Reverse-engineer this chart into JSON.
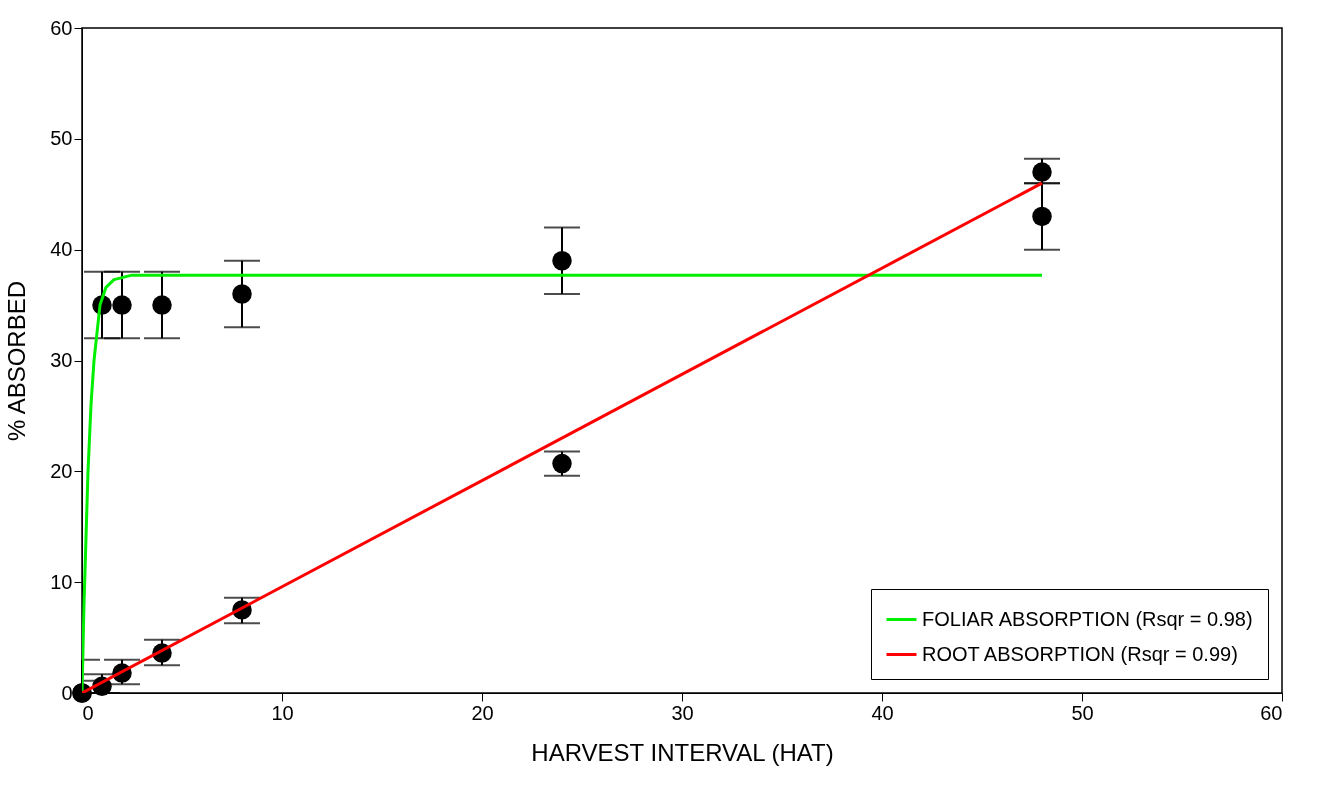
{
  "chart_data": {
    "type": "scatter",
    "xlabel": "HARVEST INTERVAL (HAT)",
    "ylabel": "% ABSORBED",
    "xlim": [
      0,
      60
    ],
    "ylim": [
      0,
      60
    ],
    "xticks": [
      0,
      10,
      20,
      30,
      40,
      50,
      60
    ],
    "yticks": [
      0,
      10,
      20,
      30,
      40,
      50,
      60
    ],
    "grid": false,
    "legend": "bottom right",
    "marker": "circle",
    "series": [
      {
        "color": "#000000",
        "x": [
          0,
          1,
          2,
          4,
          8,
          24,
          48
        ],
        "values": [
          0,
          35,
          35,
          35,
          36,
          39,
          43
        ],
        "errors": [
          [
            0,
            3
          ],
          [
            32,
            38
          ],
          [
            32,
            38
          ],
          [
            32,
            38
          ],
          [
            33,
            39
          ],
          [
            36,
            42
          ],
          [
            40,
            46
          ]
        ]
      },
      {
        "color": "#000000",
        "x": [
          0,
          1,
          2,
          4,
          8,
          24,
          48
        ],
        "values": [
          0,
          0.6,
          1.8,
          3.6,
          7.5,
          20.7,
          47
        ],
        "errors": [
          [
            0,
            1.1
          ],
          [
            0,
            1.7
          ],
          [
            0.8,
            3
          ],
          [
            2.5,
            4.8
          ],
          [
            6.3,
            8.6
          ],
          [
            19.6,
            21.8
          ],
          [
            46,
            48.2
          ]
        ]
      },
      {
        "type": "line",
        "name": "FOLIAR ABSORPTION (Rsqr = 0.98)",
        "color": "#00ee00",
        "line_style": "solid",
        "marker": "none",
        "x": [
          0,
          0.1,
          0.2,
          0.3,
          0.45,
          0.6,
          0.9,
          1.2,
          1.6,
          2.5,
          48
        ],
        "values": [
          0,
          8,
          14,
          20,
          26,
          30,
          35,
          36.6,
          37.3,
          37.7,
          37.7
        ]
      },
      {
        "type": "line",
        "name": "ROOT ABSORPTION (Rsqr = 0.99)",
        "color": "#ff0000",
        "line_style": "solid",
        "marker": "none",
        "x": [
          0,
          48
        ],
        "values": [
          0,
          46
        ]
      }
    ]
  }
}
